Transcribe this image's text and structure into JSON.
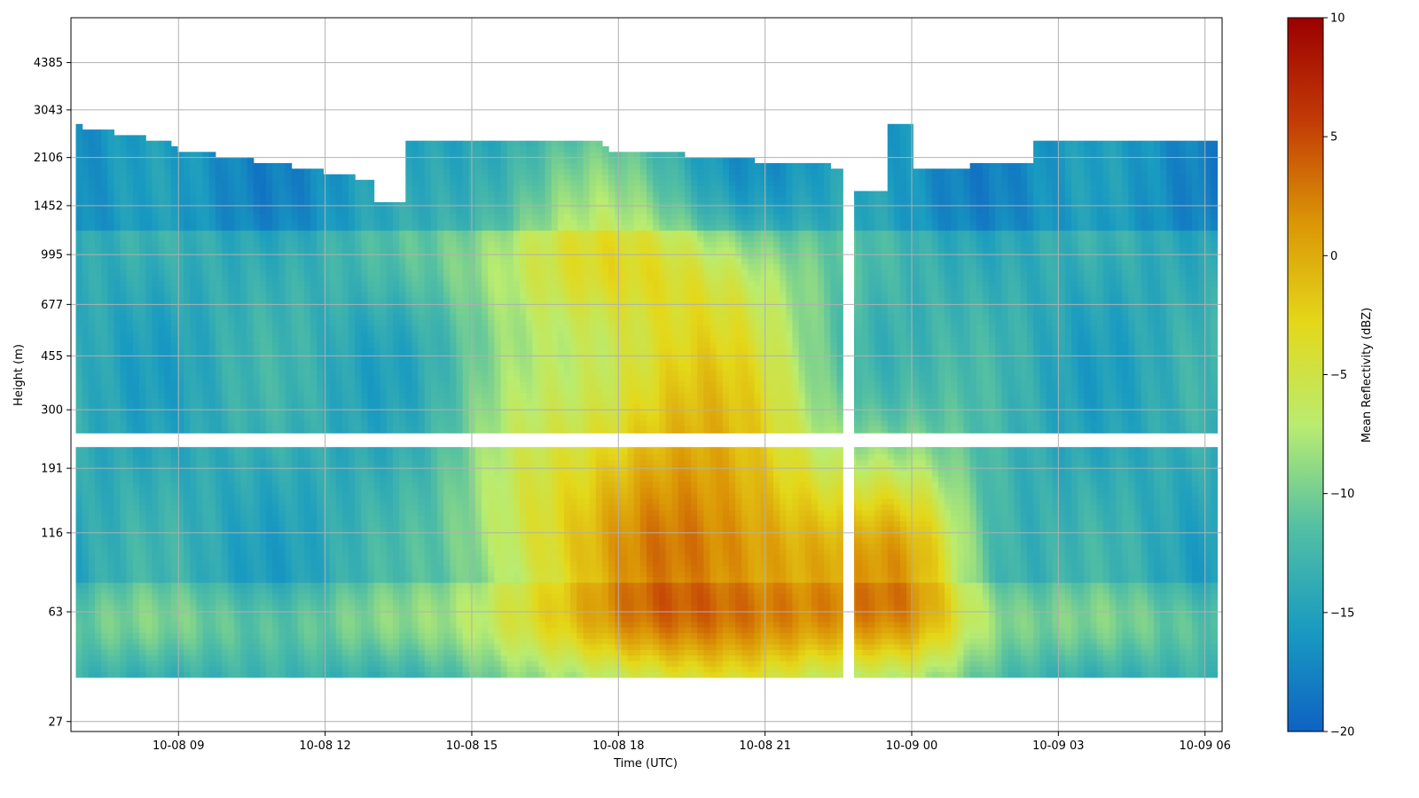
{
  "chart_data": {
    "type": "heatmap",
    "title": "",
    "xlabel": "Time (UTC)",
    "ylabel": "Height (m)",
    "colorbar_label": "Mean Reflectivity (dBZ)",
    "colormap": [
      "#0e62c2",
      "#199bc1",
      "#53bfa3",
      "#b9ec70",
      "#e4d81a",
      "#db9506",
      "#c23a06",
      "#9c0000"
    ],
    "clim": [
      -20,
      10
    ],
    "colorbar_ticks": [
      -20,
      -15,
      -10,
      -5,
      0,
      5,
      10
    ],
    "colorbar_tick_labels": [
      "−20",
      "−15",
      "−10",
      "−5",
      "0",
      "5",
      "10"
    ],
    "x_ticks": [
      "10-08 09",
      "10-08 12",
      "10-08 15",
      "10-08 18",
      "10-08 21",
      "10-09 00",
      "10-09 03",
      "10-09 06"
    ],
    "x_tick_hours": [
      9,
      12,
      15,
      18,
      21,
      24,
      27,
      30
    ],
    "xlim_hours": [
      6.8,
      30.35
    ],
    "data_range_hours": [
      6.9,
      30.25
    ],
    "y_ticks": [
      27,
      63,
      116,
      191,
      300,
      455,
      677,
      995,
      1452,
      2106,
      3043,
      4385
    ],
    "ylim_m": [
      25,
      6200
    ],
    "grid": true,
    "gaps": {
      "vertical_hours": [
        22.6,
        22.82
      ],
      "horizontal_m": [
        250,
        225
      ]
    }
  }
}
